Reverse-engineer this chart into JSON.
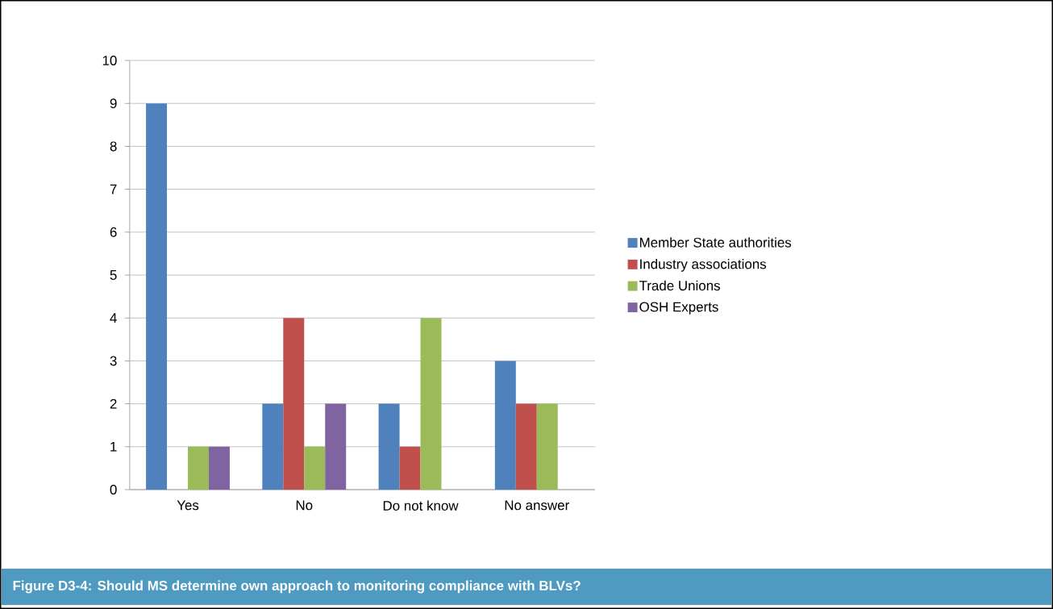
{
  "chart_data": {
    "type": "bar",
    "title": "Figure D3-4: Should MS determine own approach to monitoring compliance with BLVs?",
    "categories": [
      "Yes",
      "No",
      "Do not know",
      "No answer"
    ],
    "series": [
      {
        "name": "Member State authorities",
        "color": "#4f81bd",
        "values": [
          9,
          2,
          2,
          3
        ]
      },
      {
        "name": "Industry associations",
        "color": "#c0504d",
        "values": [
          0,
          4,
          1,
          2
        ]
      },
      {
        "name": "Trade Unions",
        "color": "#9bbb59",
        "values": [
          1,
          1,
          4,
          2
        ]
      },
      {
        "name": "OSH Experts",
        "color": "#8064a2",
        "values": [
          1,
          2,
          0,
          0
        ]
      }
    ],
    "ylim": [
      0,
      10
    ],
    "yticks": [
      0,
      1,
      2,
      3,
      4,
      5,
      6,
      7,
      8,
      9,
      10
    ],
    "grid": "y",
    "legend": "right"
  }
}
